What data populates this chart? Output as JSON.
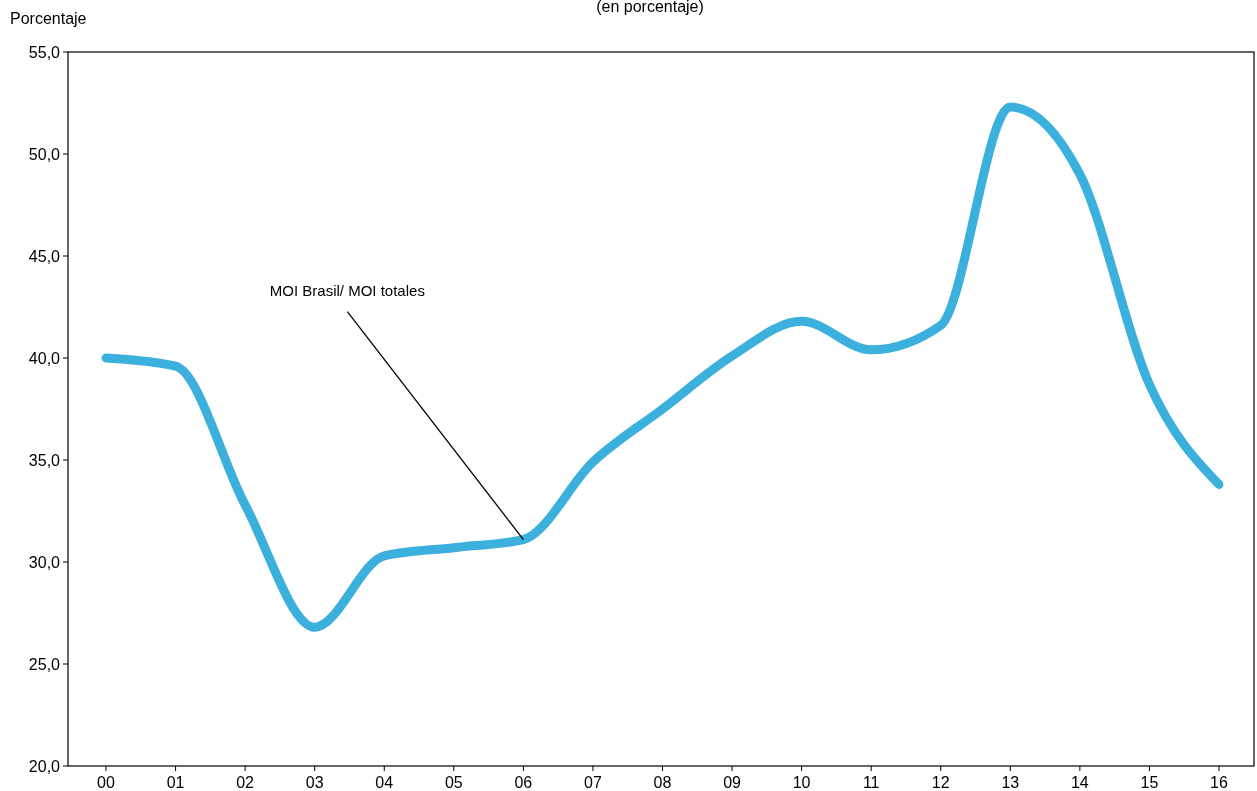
{
  "chart_data": {
    "type": "line",
    "title": "(en porcentaje)",
    "ylabel": "Porcentaje",
    "categories": [
      "00",
      "01",
      "02",
      "03",
      "04",
      "05",
      "06",
      "07",
      "08",
      "09",
      "10",
      "11",
      "12",
      "13",
      "14",
      "15",
      "16"
    ],
    "series": [
      {
        "color": "#3bb0dc",
        "values": [
          40.0,
          39.6,
          32.8,
          26.8,
          30.3,
          30.7,
          31.1,
          34.9,
          37.5,
          40.1,
          41.8,
          40.4,
          41.6,
          52.3,
          49.0,
          38.7,
          33.8
        ]
      }
    ],
    "ylim": [
      20,
      55
    ],
    "yticks": [
      {
        "value": 20,
        "label": "20,0"
      },
      {
        "value": 25,
        "label": "25,0"
      },
      {
        "value": 30,
        "label": "30,0"
      },
      {
        "value": 35,
        "label": "35,0"
      },
      {
        "value": 40,
        "label": "40,0"
      },
      {
        "value": 45,
        "label": "45,0"
      },
      {
        "value": 50,
        "label": "50,0"
      },
      {
        "value": 55,
        "label": "55,0"
      }
    ],
    "annotations": [
      {
        "text": "MOI Brasil/ MOI totales",
        "x": "06",
        "y": 31.1
      }
    ],
    "grid": false,
    "marker": "none",
    "line_style": "solid"
  }
}
